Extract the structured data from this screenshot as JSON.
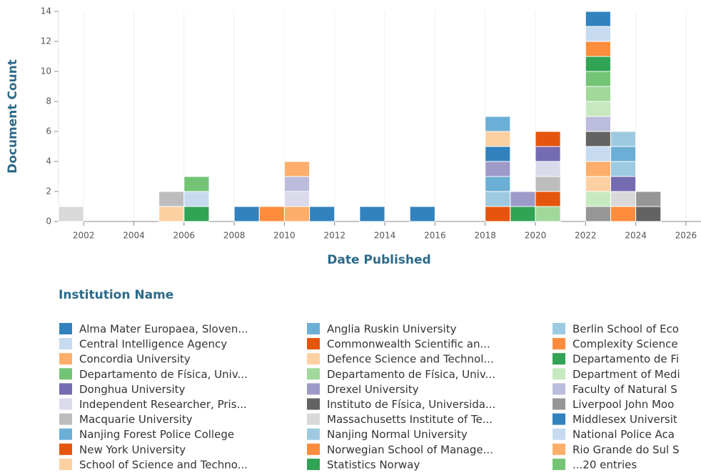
{
  "chart_data": {
    "type": "stacked-histogram",
    "xlabel": "Date Published",
    "ylabel": "Document Count",
    "xlim": [
      2001,
      2026.6
    ],
    "xticks": [
      2002,
      2004,
      2006,
      2008,
      2010,
      2012,
      2014,
      2016,
      2018,
      2020,
      2022,
      2024,
      2026
    ],
    "ylim": [
      0,
      14
    ],
    "yticks": [
      0,
      2,
      4,
      6,
      8,
      10,
      12,
      14
    ],
    "grid": true,
    "stacks": [
      {
        "x": 2001,
        "segments": [
          {
            "color": "#d9d9d9",
            "value": 1
          }
        ]
      },
      {
        "x": 2005,
        "segments": [
          {
            "color": "#fdd0a2",
            "value": 1
          },
          {
            "color": "#bdbdbd",
            "value": 1
          }
        ]
      },
      {
        "x": 2006,
        "segments": [
          {
            "color": "#31a354",
            "value": 1
          },
          {
            "color": "#c6dbef",
            "value": 1
          },
          {
            "color": "#74c476",
            "value": 1
          }
        ]
      },
      {
        "x": 2008,
        "segments": [
          {
            "color": "#3182bd",
            "value": 1
          }
        ]
      },
      {
        "x": 2009,
        "segments": [
          {
            "color": "#fd8d3c",
            "value": 1
          }
        ]
      },
      {
        "x": 2010,
        "segments": [
          {
            "color": "#fdae6b",
            "value": 1
          },
          {
            "color": "#dadaeb",
            "value": 1
          },
          {
            "color": "#bcbddc",
            "value": 1
          },
          {
            "color": "#fdae6b",
            "value": 1
          }
        ]
      },
      {
        "x": 2011,
        "segments": [
          {
            "color": "#3182bd",
            "value": 1
          }
        ]
      },
      {
        "x": 2013,
        "segments": [
          {
            "color": "#3182bd",
            "value": 1
          }
        ]
      },
      {
        "x": 2015,
        "segments": [
          {
            "color": "#3182bd",
            "value": 1
          }
        ]
      },
      {
        "x": 2018,
        "segments": [
          {
            "color": "#e6550d",
            "value": 1
          },
          {
            "color": "#9ecae1",
            "value": 1
          },
          {
            "color": "#6baed6",
            "value": 1
          },
          {
            "color": "#9e9ac8",
            "value": 1
          },
          {
            "color": "#3182bd",
            "value": 1
          },
          {
            "color": "#fdd0a2",
            "value": 1
          },
          {
            "color": "#6baed6",
            "value": 1
          }
        ]
      },
      {
        "x": 2019,
        "segments": [
          {
            "color": "#31a354",
            "value": 1
          },
          {
            "color": "#9e9ac8",
            "value": 1
          }
        ]
      },
      {
        "x": 2020,
        "segments": [
          {
            "color": "#a1d99b",
            "value": 1
          },
          {
            "color": "#e6550d",
            "value": 1
          },
          {
            "color": "#bdbdbd",
            "value": 1
          },
          {
            "color": "#dadaeb",
            "value": 1
          },
          {
            "color": "#756bb1",
            "value": 1
          },
          {
            "color": "#e6550d",
            "value": 1
          }
        ]
      },
      {
        "x": 2022,
        "segments": [
          {
            "color": "#969696",
            "value": 1
          },
          {
            "color": "#c7e9c0",
            "value": 1
          },
          {
            "color": "#fdd0a2",
            "value": 1
          },
          {
            "color": "#fdae6b",
            "value": 1
          },
          {
            "color": "#c6dbef",
            "value": 1
          },
          {
            "color": "#636363",
            "value": 1
          },
          {
            "color": "#bcbddc",
            "value": 1
          },
          {
            "color": "#c7e9c0",
            "value": 1
          },
          {
            "color": "#a1d99b",
            "value": 1
          },
          {
            "color": "#74c476",
            "value": 1
          },
          {
            "color": "#31a354",
            "value": 1
          },
          {
            "color": "#fd8d3c",
            "value": 1
          },
          {
            "color": "#c6dbef",
            "value": 1
          },
          {
            "color": "#3182bd",
            "value": 1
          }
        ]
      },
      {
        "x": 2023,
        "segments": [
          {
            "color": "#fd8d3c",
            "value": 1
          },
          {
            "color": "#d9d9d9",
            "value": 1
          },
          {
            "color": "#756bb1",
            "value": 1
          },
          {
            "color": "#9ecae1",
            "value": 1
          },
          {
            "color": "#6baed6",
            "value": 1
          },
          {
            "color": "#9ecae1",
            "value": 1
          }
        ]
      },
      {
        "x": 2024,
        "segments": [
          {
            "color": "#636363",
            "value": 1
          },
          {
            "color": "#969696",
            "value": 1
          }
        ]
      }
    ],
    "legend_title": "Institution Name",
    "legend": [
      {
        "name": "Alma Mater Europaea, Sloven...",
        "color": "#3182bd"
      },
      {
        "name": "Central Intelligence Agency",
        "color": "#c6dbef"
      },
      {
        "name": "Concordia University",
        "color": "#fdae6b"
      },
      {
        "name": "Departamento de Física, Univ...",
        "color": "#74c476"
      },
      {
        "name": "Donghua University",
        "color": "#756bb1"
      },
      {
        "name": "Independent Researcher, Pris...",
        "color": "#dadaeb"
      },
      {
        "name": "Macquarie University",
        "color": "#bdbdbd"
      },
      {
        "name": "Nanjing Forest Police College",
        "color": "#6baed6"
      },
      {
        "name": "New York University",
        "color": "#e6550d"
      },
      {
        "name": "School of Science and Techno...",
        "color": "#fdd0a2"
      },
      {
        "name": "Anglia Ruskin University",
        "color": "#6baed6"
      },
      {
        "name": "Commonwealth Scientific an...",
        "color": "#e6550d"
      },
      {
        "name": "Defence Science and Technol...",
        "color": "#fdd0a2"
      },
      {
        "name": "Departamento de Física, Univ...",
        "color": "#a1d99b"
      },
      {
        "name": "Drexel University",
        "color": "#9e9ac8"
      },
      {
        "name": "Instituto de Física, Universida...",
        "color": "#636363"
      },
      {
        "name": "Massachusetts Institute of Te...",
        "color": "#d9d9d9"
      },
      {
        "name": "Nanjing Normal University",
        "color": "#9ecae1"
      },
      {
        "name": "Norwegian School of Manage...",
        "color": "#fd8d3c"
      },
      {
        "name": "Statistics Norway",
        "color": "#31a354"
      },
      {
        "name": "Berlin School of Eco",
        "color": "#9ecae1"
      },
      {
        "name": "Complexity Science",
        "color": "#fd8d3c"
      },
      {
        "name": "Departamento de Fi",
        "color": "#31a354"
      },
      {
        "name": "Department of Medi",
        "color": "#c7e9c0"
      },
      {
        "name": "Faculty of Natural S",
        "color": "#bcbddc"
      },
      {
        "name": "Liverpool John Moo",
        "color": "#969696"
      },
      {
        "name": "Middlesex Universit",
        "color": "#3182bd"
      },
      {
        "name": "National Police Aca",
        "color": "#c6dbef"
      },
      {
        "name": "Rio Grande do Sul S",
        "color": "#fdae6b"
      },
      {
        "name": "...20 entries",
        "color": "#74c476"
      }
    ]
  }
}
